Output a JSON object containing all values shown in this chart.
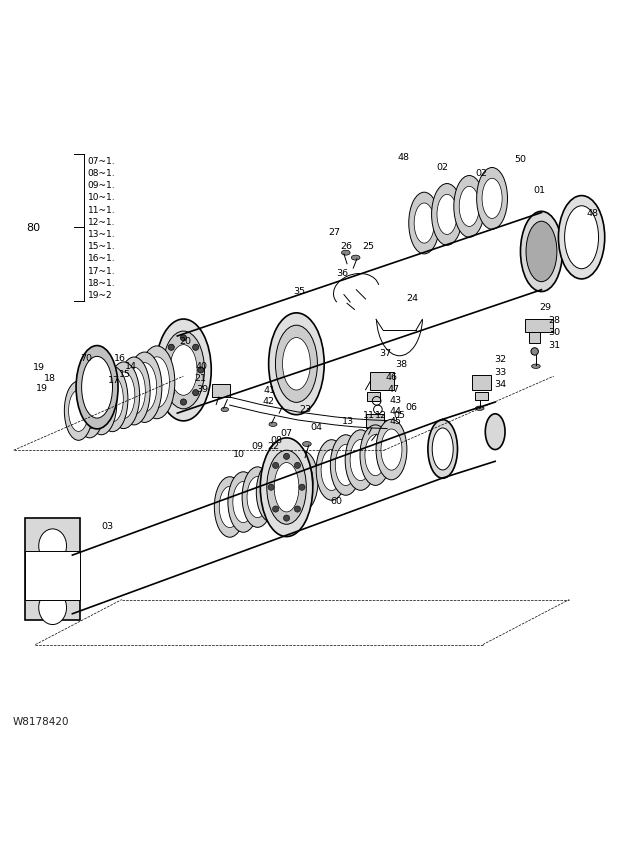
{
  "bg_color": "#ffffff",
  "line_color": "#000000",
  "fig_width": 6.2,
  "fig_height": 8.53,
  "watermark": "W8178420",
  "bracket_label": "80",
  "bracket_items": [
    "07~1.",
    "08~1.",
    "09~1.",
    "10~1.",
    "11~1.",
    "12~1.",
    "13~1.",
    "15~1.",
    "16~1.",
    "17~1.",
    "18~1.",
    "19~2"
  ]
}
